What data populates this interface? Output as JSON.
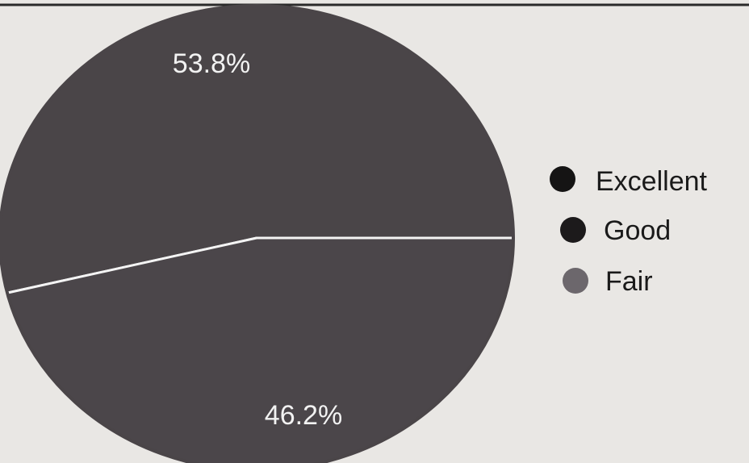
{
  "chart_data": {
    "type": "pie",
    "title": "",
    "slices": [
      {
        "label": "Excellent",
        "value": 0,
        "display": "",
        "color": "#151414"
      },
      {
        "label": "Good",
        "value": 53.8,
        "display": "53.8%",
        "color": "#4a4548"
      },
      {
        "label": "Fair",
        "value": 46.2,
        "display": "46.2%",
        "color": "#4b464a"
      }
    ],
    "legend": {
      "placement": "right",
      "entries": [
        {
          "label": "Excellent",
          "color": "#151414"
        },
        {
          "label": "Good",
          "color": "#1c1a1b"
        },
        {
          "label": "Fair",
          "color": "#6c676c"
        }
      ]
    }
  }
}
